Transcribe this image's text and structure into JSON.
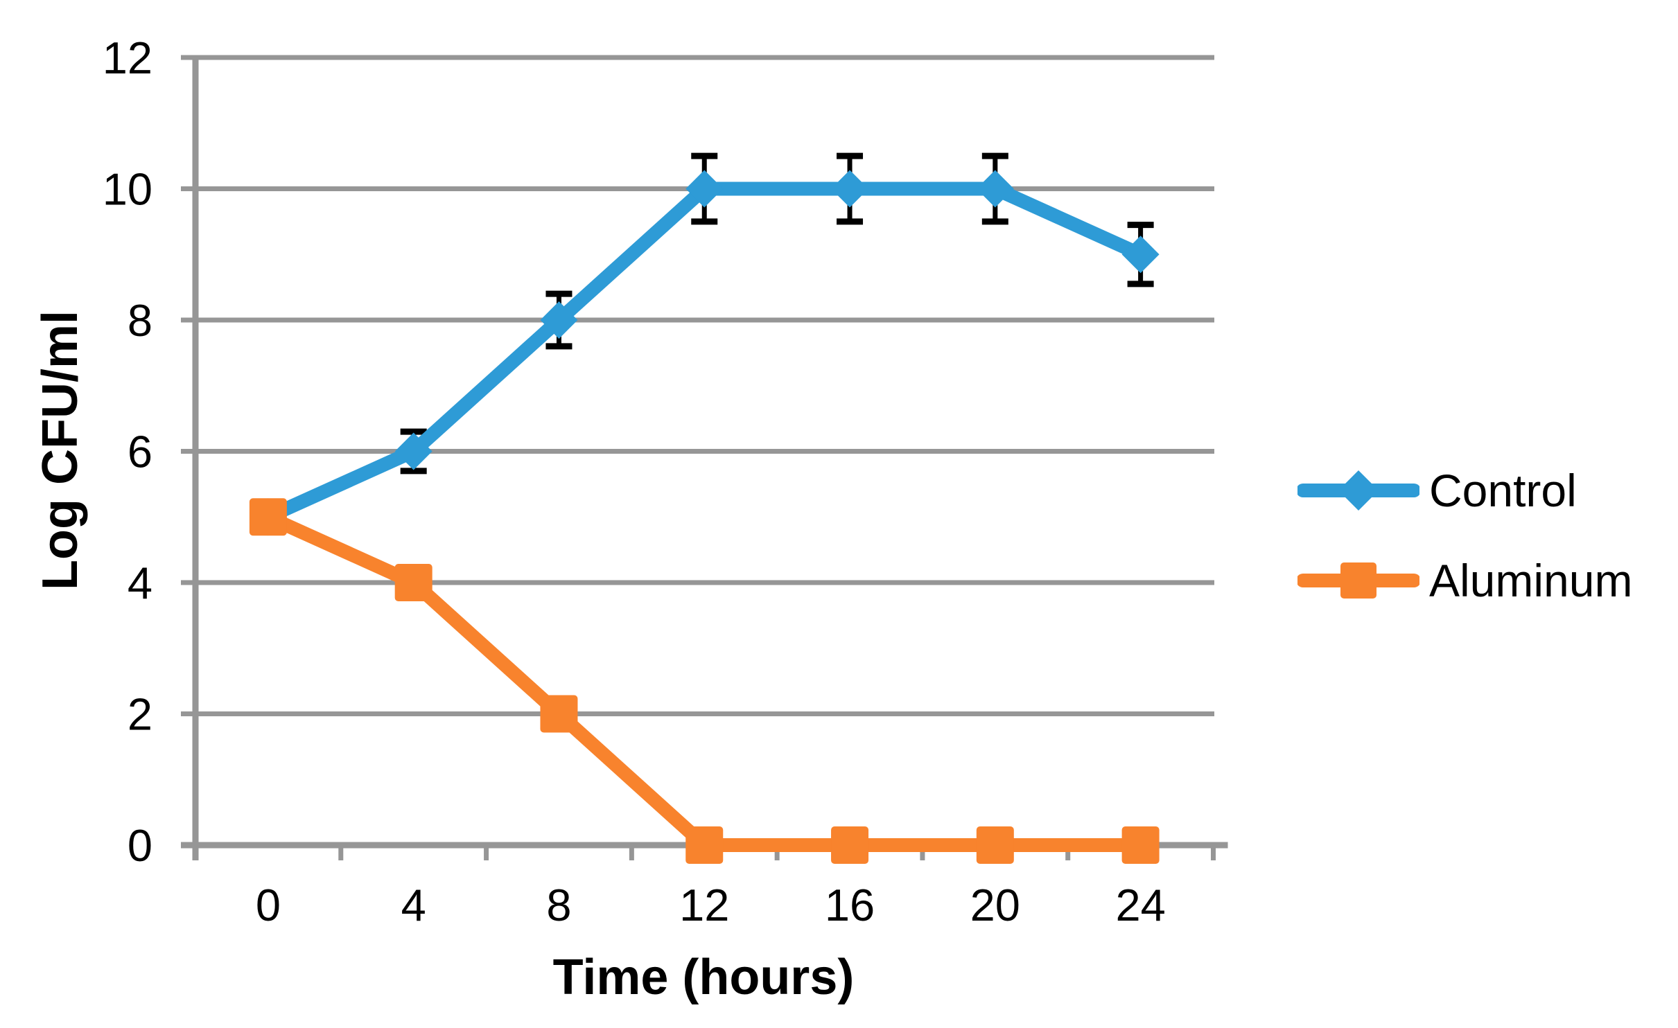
{
  "chart_data": {
    "type": "line",
    "title": "",
    "xlabel": "Time (hours)",
    "ylabel": "Log CFU/ml",
    "categories": [
      "0",
      "4",
      "8",
      "12",
      "16",
      "20",
      "24"
    ],
    "yticks": [
      "0",
      "2",
      "4",
      "6",
      "8",
      "10",
      "12"
    ],
    "ylim": [
      0,
      12
    ],
    "xlim_hours": [
      0,
      24
    ],
    "grid": "horizontal",
    "legend_position": "right-middle",
    "colors": {
      "grid": "#969696",
      "axis": "#969696",
      "error_bar": "#000000",
      "text": "#000000",
      "background": "#FFFFFF"
    },
    "series": [
      {
        "name": "Control",
        "marker": "diamond",
        "color": "#2E9BD6",
        "values": [
          5,
          6,
          8,
          10,
          10,
          10,
          9
        ],
        "error_bars": [
          0,
          0.3,
          0.4,
          0.5,
          0.5,
          0.5,
          0.45
        ]
      },
      {
        "name": "Aluminum",
        "marker": "square",
        "color": "#F8832D",
        "values": [
          5,
          4,
          2,
          0,
          0,
          0,
          0
        ],
        "error_bars": [
          0,
          0,
          0,
          0,
          0,
          0,
          0
        ]
      }
    ]
  }
}
